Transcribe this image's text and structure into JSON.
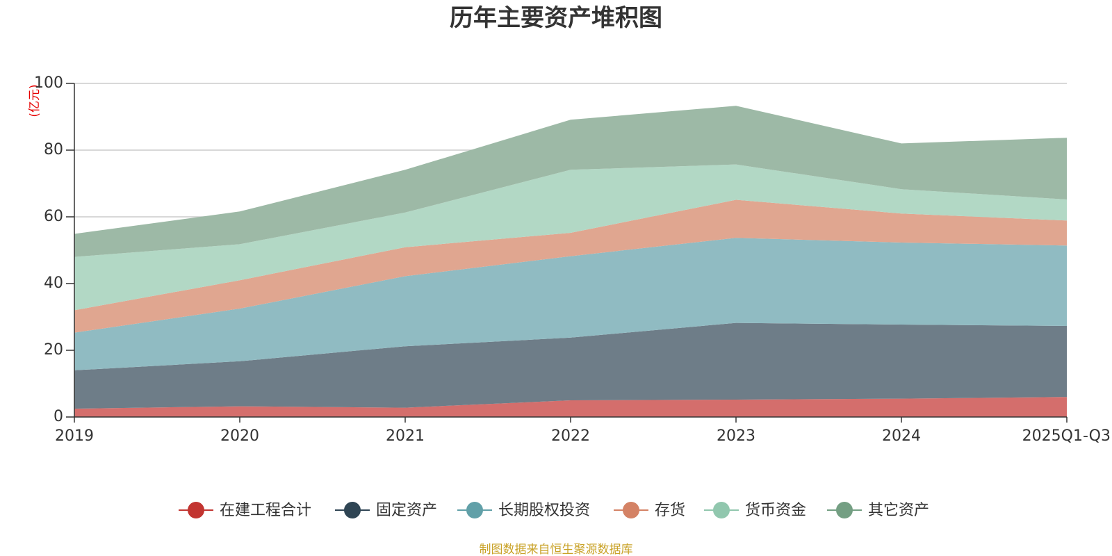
{
  "chart_data": {
    "type": "area",
    "stacked": true,
    "title": "历年主要资产堆积图",
    "unit_label": "(亿元)",
    "categories": [
      "2019",
      "2020",
      "2021",
      "2022",
      "2023",
      "2024",
      "2025Q1-Q3"
    ],
    "ylim": [
      0,
      100
    ],
    "yticks": [
      0,
      20,
      40,
      60,
      80,
      100
    ],
    "grid": true,
    "legend_position": "bottom",
    "series": [
      {
        "name": "在建工程合计",
        "color": "#c23531",
        "fill": "#d46e6c",
        "values": [
          2.5,
          3.2,
          2.8,
          5.0,
          5.2,
          5.5,
          6.0
        ]
      },
      {
        "name": "固定资产",
        "color": "#2f4554",
        "fill": "#6e7d88",
        "values": [
          11.5,
          13.5,
          18.4,
          18.8,
          23.0,
          22.2,
          21.3
        ]
      },
      {
        "name": "长期股权投资",
        "color": "#61a0a8",
        "fill": "#90bbc2",
        "values": [
          11.3,
          15.8,
          21.0,
          24.4,
          25.5,
          24.6,
          24.1
        ]
      },
      {
        "name": "存货",
        "color": "#d48265",
        "fill": "#e0a690",
        "values": [
          6.7,
          8.5,
          8.7,
          7.0,
          11.4,
          8.7,
          7.5
        ]
      },
      {
        "name": "货币资金",
        "color": "#91c7ae",
        "fill": "#b2d8c5",
        "values": [
          16.0,
          10.8,
          10.4,
          18.9,
          10.6,
          7.3,
          6.3
        ]
      },
      {
        "name": "其它资产",
        "color": "#749f83",
        "fill": "#9db9a6",
        "values": [
          6.9,
          9.8,
          12.8,
          15.0,
          17.6,
          13.7,
          18.5
        ]
      }
    ]
  },
  "source_text": "制图数据来自恒生聚源数据库"
}
